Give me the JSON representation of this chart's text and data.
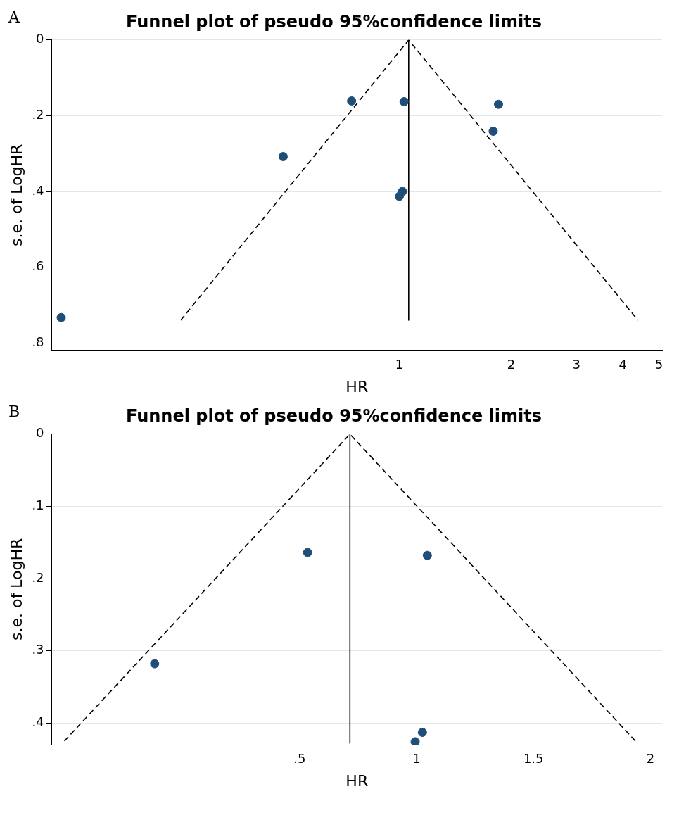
{
  "chart_data": [
    {
      "type": "scatter",
      "title": "Funnel plot of pseudo 95%confidence limits",
      "xlabel": "HR",
      "ylabel": "s.e. of LogHR",
      "annotations": [
        "A"
      ],
      "log": "x",
      "grid": "y",
      "xlim": [
        0.116,
        5.1
      ],
      "xticks": [
        1,
        2,
        3,
        4,
        5
      ],
      "ylim": [
        0.82,
        0
      ],
      "yticks": [
        0,
        {
          "value": 0.2,
          "label": ".2"
        },
        {
          "value": 0.4,
          "label": ".4"
        },
        {
          "value": 0.6,
          "label": ".6"
        },
        {
          "value": 0.8,
          "label": ".8"
        }
      ],
      "series": [
        {
          "type": "scatter",
          "marker": "circle",
          "color": "#1f4e79",
          "x": [
            0.744,
            1.03,
            1.85,
            1.79,
            0.487,
            1.02,
            1.0,
            0.123
          ],
          "values": [
            0.161,
            0.163,
            0.17,
            0.241,
            0.308,
            0.4,
            0.413,
            0.733
          ]
        },
        {
          "type": "line",
          "marker": "none",
          "line_style": "solid",
          "color": "#000000",
          "x": [
            1.06,
            1.06
          ],
          "values": [
            0,
            0.74
          ]
        },
        {
          "type": "line",
          "marker": "none",
          "line_style": "dashed",
          "color": "#000000",
          "x": [
            0.258,
            1.06,
            4.39
          ],
          "values": [
            0.74,
            0,
            0.74
          ]
        }
      ]
    },
    {
      "type": "scatter",
      "title": "Funnel plot of pseudo 95%confidence limits",
      "xlabel": "HR",
      "ylabel": "s.e. of LogHR",
      "annotations": [
        "B"
      ],
      "grid": "y",
      "xlim": [
        -0.56,
        2.05
      ],
      "xticks": [
        {
          "value": 0.5,
          "label": ".5"
        },
        1,
        1.5,
        2
      ],
      "ylim": [
        0.43,
        0
      ],
      "yticks": [
        0,
        {
          "value": 0.1,
          "label": ".1"
        },
        {
          "value": 0.2,
          "label": ".2"
        },
        {
          "value": 0.3,
          "label": ".3"
        },
        {
          "value": 0.4,
          "label": ".4"
        }
      ],
      "series": [
        {
          "type": "scatter",
          "marker": "circle",
          "color": "#1f4e79",
          "x": [
            0.534,
            1.046,
            -0.12,
            1.025,
            0.994
          ],
          "values": [
            0.164,
            0.168,
            0.318,
            0.413,
            0.426
          ]
        },
        {
          "type": "line",
          "marker": "none",
          "line_style": "solid",
          "color": "#000000",
          "x": [
            0.715,
            0.715
          ],
          "values": [
            0,
            0.428
          ]
        },
        {
          "type": "line",
          "marker": "none",
          "line_style": "dashed",
          "color": "#000000",
          "x": [
            -0.506,
            0.715,
            1.936
          ],
          "values": [
            0.425,
            0,
            0.425
          ]
        }
      ]
    }
  ]
}
